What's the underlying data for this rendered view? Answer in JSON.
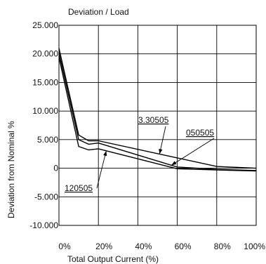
{
  "chart_data": {
    "type": "line",
    "title": "Deviation / Load",
    "xlabel": "Total Output Current (%)",
    "ylabel": "Deviation from Nominal %",
    "x": [
      0,
      10,
      15,
      20,
      60,
      80,
      100
    ],
    "xlim": [
      0,
      100
    ],
    "ylim": [
      -10,
      25
    ],
    "x_tick_values": [
      0,
      20,
      40,
      60,
      80,
      100
    ],
    "x_tick_labels": [
      "0%",
      "20%",
      "40%",
      "60%",
      "80%",
      "100%"
    ],
    "y_tick_values": [
      25,
      20,
      15,
      10,
      5,
      0,
      -5,
      -10
    ],
    "y_tick_labels": [
      "25.000",
      "20.000",
      "15.000",
      "10.000",
      "5.000",
      "0",
      "-5.000",
      "-10.000"
    ],
    "grid": true,
    "series": [
      {
        "name": "3.30505",
        "values": [
          21.0,
          5.8,
          4.8,
          4.8,
          1.8,
          0.3,
          0.0
        ]
      },
      {
        "name": "050505",
        "values": [
          20.2,
          5.0,
          4.2,
          4.4,
          0.2,
          -0.2,
          -0.4
        ]
      },
      {
        "name": "120505",
        "values": [
          19.4,
          3.8,
          3.2,
          3.4,
          -0.1,
          -0.3,
          -0.5
        ]
      }
    ],
    "annotations": [
      {
        "text": "3.30505",
        "target_series": 0,
        "target_x": 51
      },
      {
        "text": "050505",
        "target_series": 1,
        "target_x": 57
      },
      {
        "text": "120505",
        "target_series": 2,
        "target_x": 24
      }
    ]
  }
}
